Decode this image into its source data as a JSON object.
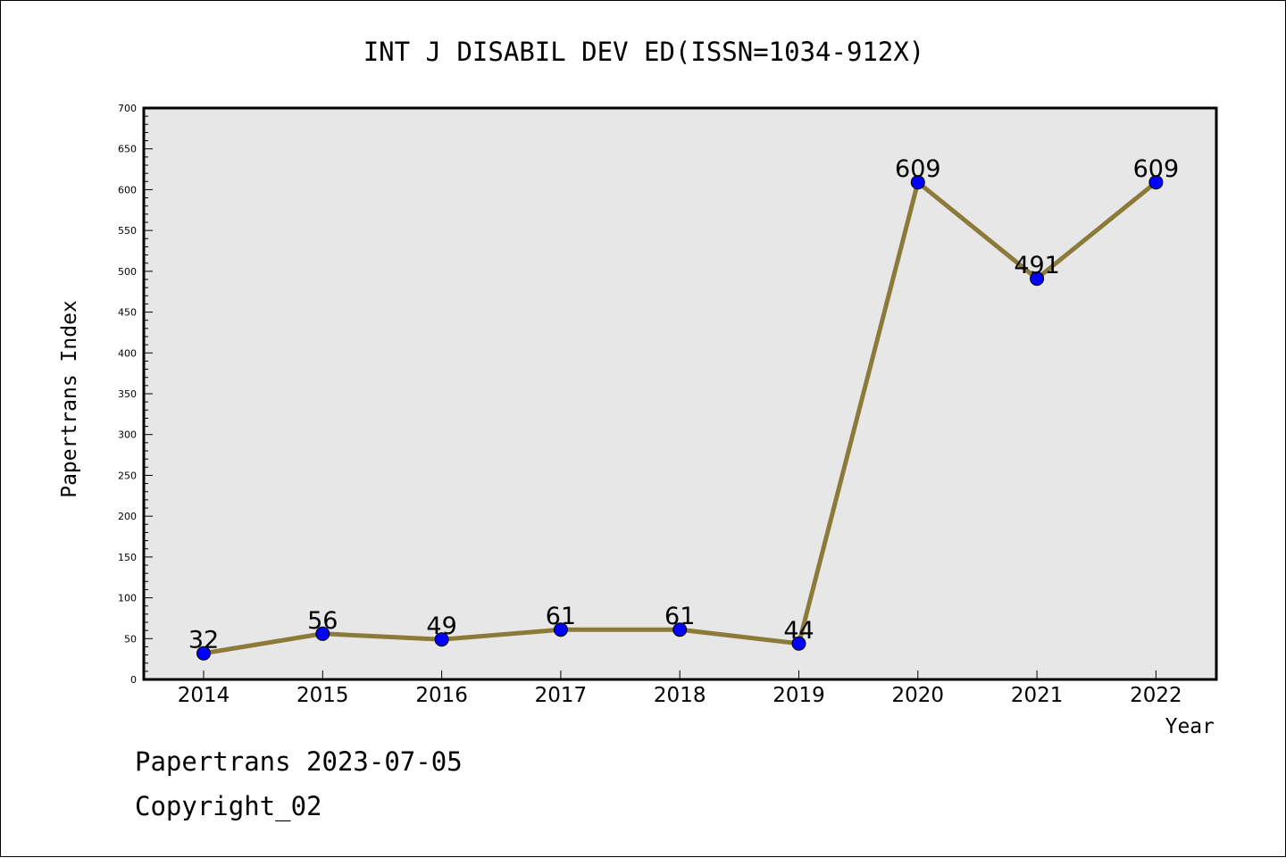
{
  "chart_data": {
    "type": "line",
    "title": "INT J DISABIL DEV ED(ISSN=1034-912X)",
    "xlabel": "Year",
    "ylabel": "Papertrans Index",
    "categories": [
      "2014",
      "2015",
      "2016",
      "2017",
      "2018",
      "2019",
      "2020",
      "2021",
      "2022"
    ],
    "series": [
      {
        "values": [
          32,
          56,
          49,
          61,
          61,
          44,
          609,
          491,
          609
        ]
      }
    ],
    "data_labels": [
      "32",
      "56",
      "49",
      "61",
      "61",
      "44",
      "609",
      "491",
      "609"
    ],
    "ylim": [
      0,
      700
    ],
    "yticks": [
      0,
      50,
      100,
      150,
      200,
      250,
      300,
      350,
      400,
      450,
      500,
      550,
      600,
      650,
      700
    ],
    "grid": false,
    "legend": "none",
    "colors": {
      "plot_background": "#e7e7e7",
      "line": "#8c7a3a",
      "marker": "#0000ff"
    }
  },
  "footer": {
    "line1": "Papertrans 2023-07-05",
    "line2": "Copyright_02"
  }
}
